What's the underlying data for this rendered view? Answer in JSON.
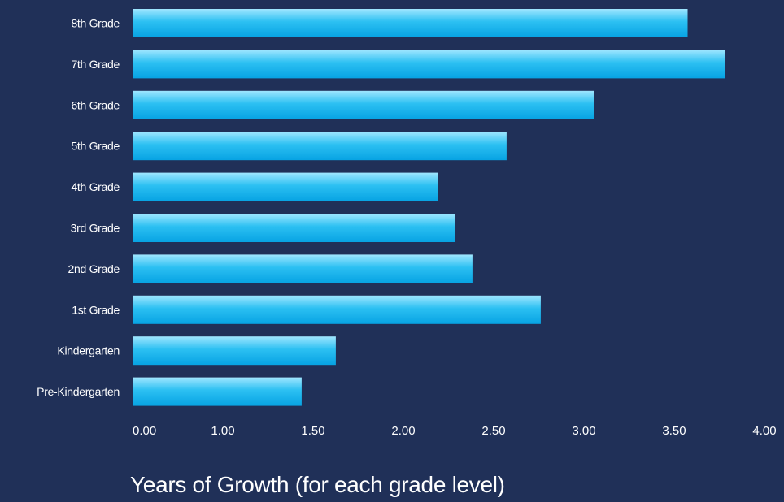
{
  "chart_data": {
    "type": "bar",
    "orientation": "horizontal",
    "categories": [
      "8th Grade",
      "7th Grade",
      "6th Grade",
      "5th Grade",
      "4th Grade",
      "3rd Grade",
      "2nd Grade",
      "1st Grade",
      "Kindergarten",
      "Pre-Kindergarten"
    ],
    "values": [
      3.55,
      3.77,
      3.0,
      2.49,
      2.09,
      2.19,
      2.29,
      2.69,
      1.49,
      1.29
    ],
    "xlabel": "Years of Growth (for each grade level)",
    "ylabel": "",
    "xlim": [
      0.3,
      4.0
    ],
    "xticks": [
      "0.00",
      "1.00",
      "1.50",
      "2.00",
      "2.50",
      "3.00",
      "3.50",
      "4.00"
    ],
    "grid": false,
    "legend": "none",
    "colors": {
      "background": "#203058",
      "bar_top": "#9fe6ff",
      "bar_mid": "#2cc0f2",
      "bar_bottom": "#07a3e3",
      "text": "#ffffff"
    }
  }
}
